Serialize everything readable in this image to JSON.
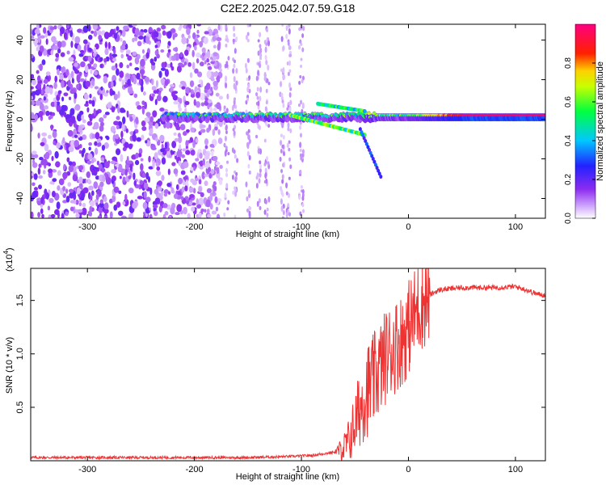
{
  "title": "C2E2.2025.042.07.59.G18",
  "chart_data": [
    {
      "type": "heatmap",
      "xlabel": "Height of straight line (km)",
      "ylabel": "Frequency (Hz)",
      "xlim": [
        -353,
        128
      ],
      "ylim": [
        -50,
        48
      ],
      "xticks": [
        -300,
        -200,
        -100,
        0,
        100
      ],
      "yticks": [
        -40,
        -20,
        0,
        20,
        40
      ],
      "colorbar": {
        "label": "Normalized spectral amplitude",
        "range": [
          0.0,
          1.0
        ],
        "ticks": [
          0.0,
          0.2,
          0.4,
          0.6,
          0.8
        ],
        "colormap": "rainbow (purple-blue-cyan-green-yellow-red-magenta)"
      },
      "features": [
        {
          "name": "diffuse noise",
          "x_range": [
            -353,
            -175
          ],
          "y_range": [
            -50,
            48
          ],
          "amplitude": 0.15
        },
        {
          "name": "sparse noise streaks",
          "x_range": [
            -175,
            -95
          ],
          "y_range": [
            -50,
            48
          ],
          "amplitude": 0.05
        },
        {
          "name": "main carrier line",
          "x_range": [
            -230,
            128
          ],
          "y_center": 2,
          "amplitude_peak": 1.0
        },
        {
          "name": "split branches",
          "x_range": [
            -110,
            -40
          ],
          "y_range": [
            -10,
            12
          ]
        },
        {
          "name": "descending tail",
          "x_range": [
            -45,
            -25
          ],
          "y_range": [
            -30,
            -5
          ]
        }
      ]
    },
    {
      "type": "line",
      "xlabel": "Height of straight line (km)",
      "ylabel": "SNR (10 * v/v)",
      "y_multiplier": "(x10",
      "y_multiplier_exp": "4",
      "xlim": [
        -353,
        128
      ],
      "ylim": [
        0,
        1.8
      ],
      "xticks": [
        -300,
        -200,
        -100,
        0,
        100
      ],
      "yticks": [
        0.5,
        1.0,
        1.5
      ],
      "ytick_labels": [
        "0.5",
        "1.0",
        "1.5"
      ],
      "series": [
        {
          "color": "#ee3333",
          "x": [
            -353,
            -300,
            -250,
            -200,
            -150,
            -110,
            -90,
            -70,
            -60,
            -55,
            -50,
            -45,
            -40,
            -35,
            -30,
            -25,
            -20,
            -15,
            -10,
            -5,
            0,
            5,
            10,
            15,
            20,
            25,
            30,
            40,
            50,
            60,
            80,
            100,
            110,
            115,
            120,
            128
          ],
          "y": [
            0.03,
            0.03,
            0.03,
            0.03,
            0.03,
            0.04,
            0.05,
            0.08,
            0.12,
            0.2,
            0.35,
            0.5,
            0.65,
            0.7,
            0.8,
            0.9,
            1.0,
            1.05,
            1.1,
            1.15,
            1.25,
            1.35,
            1.45,
            1.5,
            1.55,
            1.58,
            1.6,
            1.61,
            1.62,
            1.62,
            1.62,
            1.63,
            1.6,
            1.58,
            1.56,
            1.55
          ]
        }
      ]
    }
  ]
}
